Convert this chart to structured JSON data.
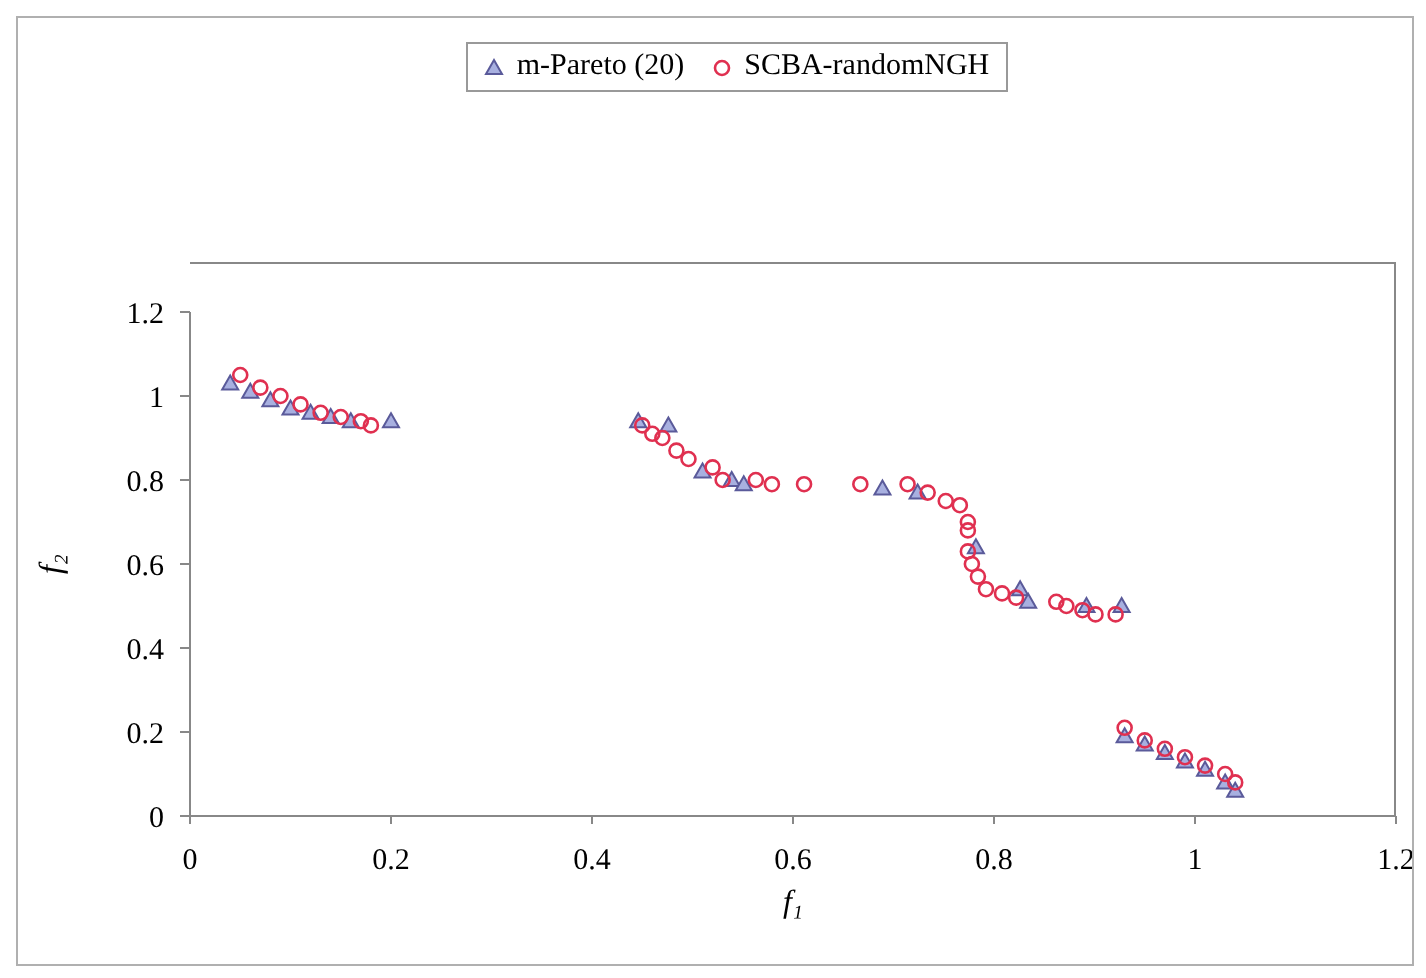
{
  "chart_data": {
    "type": "scatter",
    "xlabel": "f₁",
    "ylabel": "f₂",
    "xlim": [
      0,
      1.2
    ],
    "ylim": [
      0,
      1.2
    ],
    "xticks": [
      0,
      0.2,
      0.4,
      0.6,
      0.8,
      1,
      1.2
    ],
    "yticks": [
      0,
      0.2,
      0.4,
      0.6,
      0.8,
      1,
      1.2
    ],
    "grid": false,
    "legend": "top",
    "series": [
      {
        "name": "m-Pareto (20)",
        "color": "#5a5a9a",
        "marker": "triangle",
        "x": [
          0.04,
          0.06,
          0.08,
          0.1,
          0.12,
          0.14,
          0.16,
          0.2,
          0.446,
          0.476,
          0.51,
          0.539,
          0.551,
          0.689,
          0.724,
          0.782,
          0.826,
          0.834,
          0.892,
          0.927,
          0.93,
          0.95,
          0.97,
          0.99,
          1.01,
          1.03,
          1.04
        ],
        "values": [
          1.03,
          1.01,
          0.99,
          0.97,
          0.96,
          0.95,
          0.94,
          0.94,
          0.94,
          0.93,
          0.82,
          0.8,
          0.79,
          0.78,
          0.77,
          0.64,
          0.54,
          0.51,
          0.5,
          0.5,
          0.19,
          0.17,
          0.15,
          0.13,
          0.11,
          0.08,
          0.06
        ]
      },
      {
        "name": "SCBA-randomNGH",
        "color": "#e03050",
        "marker": "circle",
        "x": [
          0.05,
          0.07,
          0.09,
          0.11,
          0.13,
          0.15,
          0.17,
          0.18,
          0.45,
          0.46,
          0.47,
          0.484,
          0.496,
          0.52,
          0.53,
          0.563,
          0.579,
          0.611,
          0.667,
          0.714,
          0.734,
          0.752,
          0.766,
          0.774,
          0.774,
          0.774,
          0.778,
          0.784,
          0.792,
          0.808,
          0.822,
          0.862,
          0.872,
          0.888,
          0.901,
          0.921,
          0.93,
          0.95,
          0.97,
          0.99,
          1.01,
          1.03,
          1.04
        ],
        "values": [
          1.05,
          1.02,
          1,
          0.98,
          0.96,
          0.95,
          0.94,
          0.93,
          0.93,
          0.91,
          0.9,
          0.87,
          0.85,
          0.83,
          0.8,
          0.8,
          0.79,
          0.79,
          0.79,
          0.79,
          0.77,
          0.75,
          0.74,
          0.7,
          0.68,
          0.63,
          0.6,
          0.57,
          0.54,
          0.53,
          0.52,
          0.51,
          0.5,
          0.49,
          0.48,
          0.48,
          0.21,
          0.18,
          0.16,
          0.14,
          0.12,
          0.1,
          0.08
        ]
      }
    ]
  }
}
